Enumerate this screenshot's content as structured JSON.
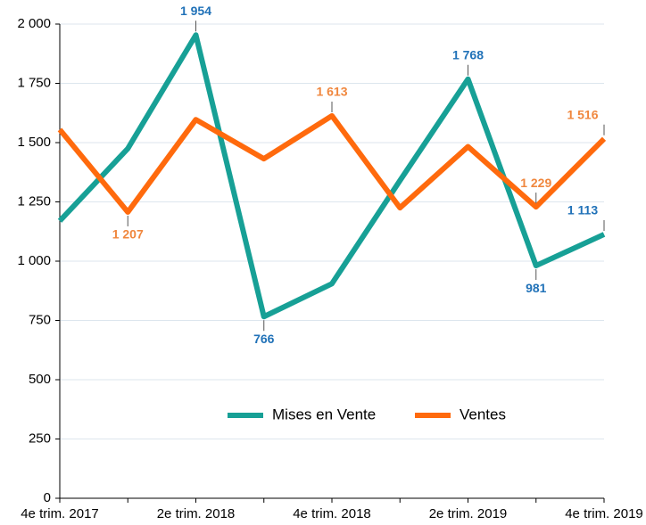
{
  "chart_data": {
    "type": "line",
    "categories": [
      "4e trim. 2017",
      null,
      "2e trim. 2018",
      null,
      "4e trim. 2018",
      null,
      "2e trim. 2019",
      null,
      "4e trim. 2019"
    ],
    "series": [
      {
        "name": "Mises en Vente",
        "color": "#17a096",
        "values": [
          1170,
          1475,
          1954,
          766,
          905,
          1340,
          1768,
          981,
          1113
        ],
        "value_labels": [
          null,
          null,
          "1 954",
          "766",
          null,
          null,
          "1 768",
          "981",
          "1 113"
        ],
        "label_color": "#2172b8"
      },
      {
        "name": "Ventes",
        "color": "#ff6a0d",
        "values": [
          1555,
          1207,
          1597,
          1432,
          1613,
          1225,
          1483,
          1229,
          1516
        ],
        "value_labels": [
          null,
          "1 207",
          null,
          null,
          "1 613",
          null,
          null,
          "1 229",
          "1 516"
        ],
        "label_color": "#f0873e"
      }
    ],
    "ylim": [
      0,
      2000
    ],
    "yticks": [
      0,
      250,
      500,
      750,
      {
        "value": 1000,
        "label": "1 000"
      },
      {
        "value": 1250,
        "label": "1 250"
      },
      {
        "value": 1500,
        "label": "1 500"
      },
      {
        "value": 1750,
        "label": "1 750"
      },
      {
        "value": 2000,
        "label": "2 000"
      }
    ],
    "grid": true,
    "legend": "bottom"
  }
}
